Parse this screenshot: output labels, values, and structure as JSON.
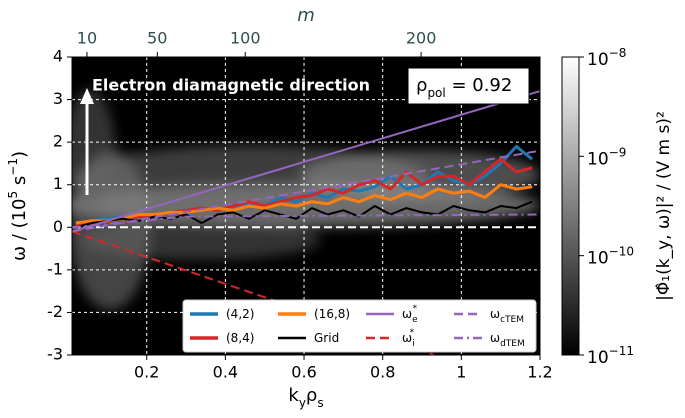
{
  "chart_data": {
    "type": "line",
    "xlabel": [
      {
        "text": "k"
      },
      {
        "text": "y",
        "sub": true
      },
      {
        "text": "ρ"
      },
      {
        "text": "s",
        "sub": true
      }
    ],
    "ylabel": [
      {
        "text": "ω / (10"
      },
      {
        "text": "5",
        "sup": true
      },
      {
        "text": " s"
      },
      {
        "text": "−1",
        "sup": true
      },
      {
        "text": ")"
      }
    ],
    "x2label": "m",
    "xlim": [
      0.01,
      1.2
    ],
    "xticks": [
      0.2,
      0.4,
      0.6,
      0.8,
      1.0,
      1.2
    ],
    "ylim": [
      -3,
      4
    ],
    "yticks": [
      -3,
      -2,
      -1,
      0,
      1,
      2,
      3,
      4
    ],
    "x2lim": [
      1.5,
      267.6
    ],
    "x2ticks": [
      10,
      50,
      100,
      200
    ],
    "x2tick_color": "#2f4f4f",
    "grid": true,
    "background": "#000000",
    "annotations": [
      {
        "text": "Electron diamagnetic direction"
      },
      {
        "parts": [
          {
            "text": "ρ"
          },
          {
            "text": "pol",
            "sub": true
          },
          {
            "text": " = 0.92"
          }
        ]
      }
    ],
    "colorbar": {
      "label": "|Φ̂₁(k_y, ω)|² / (V m s)²",
      "scale": "log",
      "lim": [
        1e-11,
        1e-08
      ],
      "ticks": [
        {
          "value": 1e-11,
          "label": "10",
          "exponent": "−11"
        },
        {
          "value": 1e-10,
          "label": "10",
          "exponent": "−10"
        },
        {
          "value": 1e-09,
          "label": "10",
          "exponent": "−9"
        },
        {
          "value": 1e-08,
          "label": "10",
          "exponent": "−8"
        }
      ]
    },
    "legend": "lower right",
    "x": [
      0.02,
      0.06,
      0.1,
      0.14,
      0.18,
      0.22,
      0.26,
      0.3,
      0.34,
      0.38,
      0.42,
      0.46,
      0.5,
      0.54,
      0.58,
      0.62,
      0.66,
      0.7,
      0.74,
      0.78,
      0.82,
      0.86,
      0.9,
      0.94,
      0.98,
      1.02,
      1.06,
      1.1,
      1.14,
      1.18
    ],
    "series": [
      {
        "name": "(4,2)",
        "color": "#1f77b4",
        "style": "solid",
        "width": 3,
        "values": [
          0.1,
          0.15,
          0.2,
          0.25,
          0.3,
          0.3,
          0.35,
          0.35,
          0.45,
          0.4,
          0.5,
          0.55,
          0.5,
          0.7,
          0.6,
          0.8,
          0.7,
          0.9,
          0.85,
          0.95,
          1.2,
          0.9,
          1.0,
          1.3,
          1.1,
          1.0,
          1.2,
          1.5,
          1.9,
          1.6
        ]
      },
      {
        "name": "(8,4)",
        "color": "#d62728",
        "style": "solid",
        "width": 3,
        "values": [
          0.05,
          0.1,
          0.15,
          0.2,
          0.25,
          0.3,
          0.35,
          0.4,
          0.45,
          0.4,
          0.5,
          0.6,
          0.5,
          0.6,
          0.7,
          0.75,
          0.9,
          0.8,
          1.0,
          1.1,
          0.9,
          1.3,
          1.0,
          1.2,
          1.2,
          1.0,
          1.3,
          1.6,
          1.3,
          1.4
        ]
      },
      {
        "name": "(16,8)",
        "color": "#ff7f0e",
        "style": "solid",
        "width": 3,
        "values": [
          0.1,
          0.15,
          0.15,
          0.2,
          0.3,
          0.3,
          0.35,
          0.35,
          0.4,
          0.45,
          0.4,
          0.5,
          0.45,
          0.55,
          0.5,
          0.6,
          0.55,
          0.7,
          0.6,
          0.75,
          0.65,
          0.8,
          0.7,
          0.9,
          0.8,
          0.85,
          0.7,
          1.0,
          0.9,
          0.95
        ]
      },
      {
        "name": "Grid",
        "color": "#000000",
        "style": "solid",
        "width": 2,
        "values": [
          0.0,
          0.1,
          0.15,
          0.2,
          0.15,
          0.25,
          0.2,
          0.3,
          0.1,
          0.3,
          0.35,
          0.2,
          0.4,
          0.3,
          0.2,
          0.45,
          0.3,
          0.4,
          0.25,
          0.5,
          0.3,
          0.45,
          0.35,
          0.3,
          0.5,
          0.4,
          0.35,
          0.5,
          0.45,
          0.6
        ]
      },
      {
        "name": "ω",
        "sub": "e",
        "sup": "*",
        "color": "#9467bd",
        "style": "solid",
        "width": 2,
        "x": [
          0.01,
          1.2
        ],
        "values": [
          -0.1,
          3.2
        ]
      },
      {
        "name": "ω",
        "sub": "i",
        "sup": "*",
        "color": "#d62728",
        "style": "dashed",
        "width": 2,
        "x": [
          0.01,
          0.93
        ],
        "values": [
          -0.1,
          -3
        ]
      },
      {
        "name": "ω",
        "sub": "cTEM",
        "color": "#9467bd",
        "style": "dashed",
        "width": 2,
        "x": [
          0.01,
          1.2
        ],
        "values": [
          -0.1,
          1.8
        ]
      },
      {
        "name": "ω",
        "sub": "dTEM",
        "color": "#9467bd",
        "style": "dashdot",
        "width": 2,
        "x": [
          0.01,
          0.3,
          1.2
        ],
        "values": [
          0.0,
          0.25,
          0.3
        ]
      }
    ]
  }
}
